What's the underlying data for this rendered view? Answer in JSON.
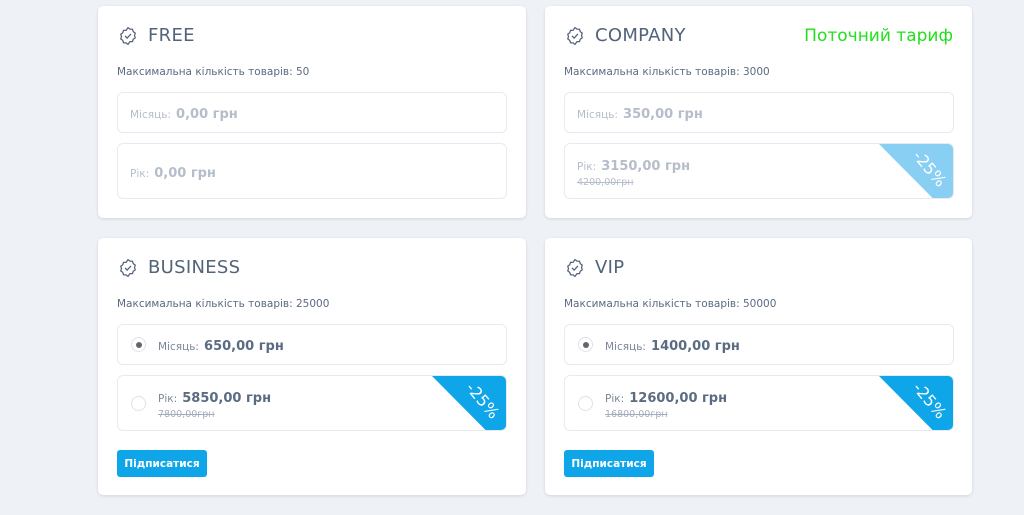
{
  "colors": {
    "accent": "#0ea5e9",
    "ribbon_light": "#89cff3",
    "current": "#22e01c"
  },
  "icons": {
    "plan": "badge-check-icon"
  },
  "plans": [
    {
      "name": "FREE",
      "max": "Максимальна кількість товарів: 50",
      "month_label": "Місяць:",
      "month_price": "0,00 грн",
      "year_label": "Рік:",
      "year_price": "0,00 грн"
    },
    {
      "name": "COMPANY",
      "current": "Поточний тариф",
      "max": "Максимальна кількість товарів: 3000",
      "month_label": "Місяць:",
      "month_price": "350,00 грн",
      "year_label": "Рік:",
      "year_price": "3150,00 грн",
      "year_old": "4200,00грн",
      "discount": "-25%"
    },
    {
      "name": "BUSINESS",
      "max": "Максимальна кількість товарів: 25000",
      "month_label": "Місяць:",
      "month_price": "650,00 грн",
      "year_label": "Рік:",
      "year_price": "5850,00 грн",
      "year_old": "7800,00грн",
      "discount": "-25%",
      "month_selected": true,
      "button": "Підписатися"
    },
    {
      "name": "VIP",
      "max": "Максимальна кількість товарів: 50000",
      "month_label": "Місяць:",
      "month_price": "1400,00 грн",
      "year_label": "Рік:",
      "year_price": "12600,00 грн",
      "year_old": "16800,00грн",
      "discount": "-25%",
      "month_selected": true,
      "button": "Підписатися"
    }
  ]
}
